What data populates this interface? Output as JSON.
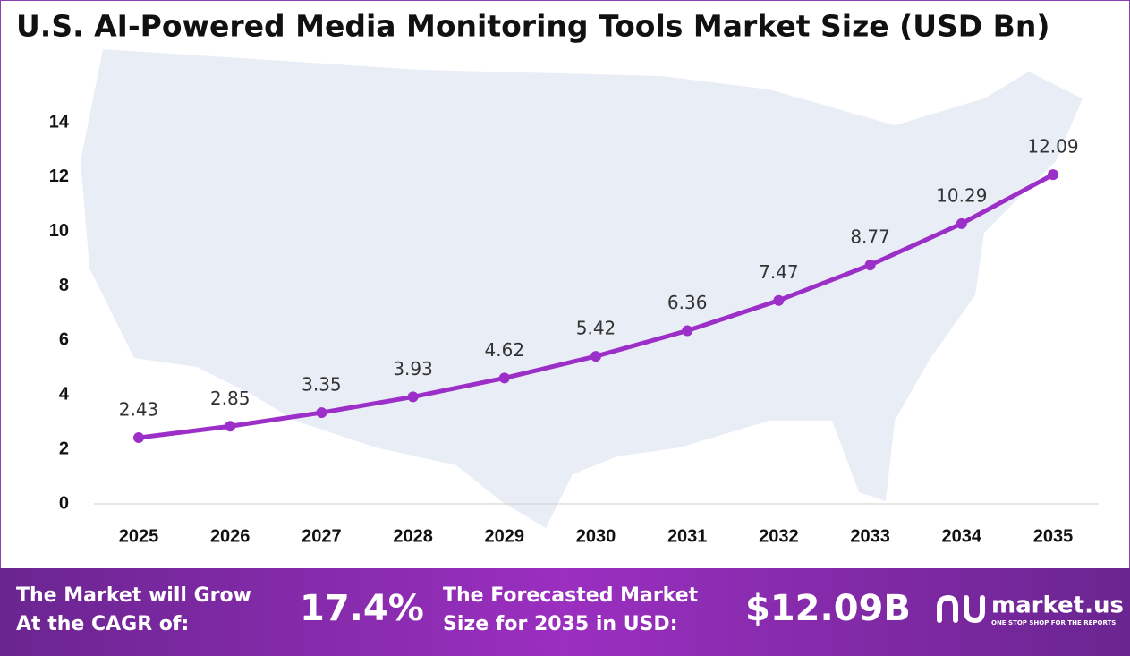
{
  "chart_data": {
    "type": "line",
    "title": "U.S. AI-Powered Media Monitoring Tools Market Size (USD Bn)",
    "categories": [
      "2025",
      "2026",
      "2027",
      "2028",
      "2029",
      "2030",
      "2031",
      "2032",
      "2033",
      "2034",
      "2035"
    ],
    "values": [
      2.43,
      2.85,
      3.35,
      3.93,
      4.62,
      5.42,
      6.36,
      7.47,
      8.77,
      10.29,
      12.09
    ],
    "color": "#9b2fc7",
    "ylim": [
      0,
      14
    ],
    "yticks": [
      0,
      2,
      4,
      6,
      8,
      10,
      12,
      14
    ],
    "grid": false
  },
  "footer": {
    "cagr_text": [
      "The Market will Grow",
      "At the CAGR of:"
    ],
    "cagr_value": "17.4%",
    "forecast_text": [
      "The Forecasted Market",
      "Size for 2035 in USD:"
    ],
    "forecast_value": "$12.09B",
    "brand": "market.us",
    "tagline": "ONE STOP SHOP FOR THE REPORTS"
  }
}
